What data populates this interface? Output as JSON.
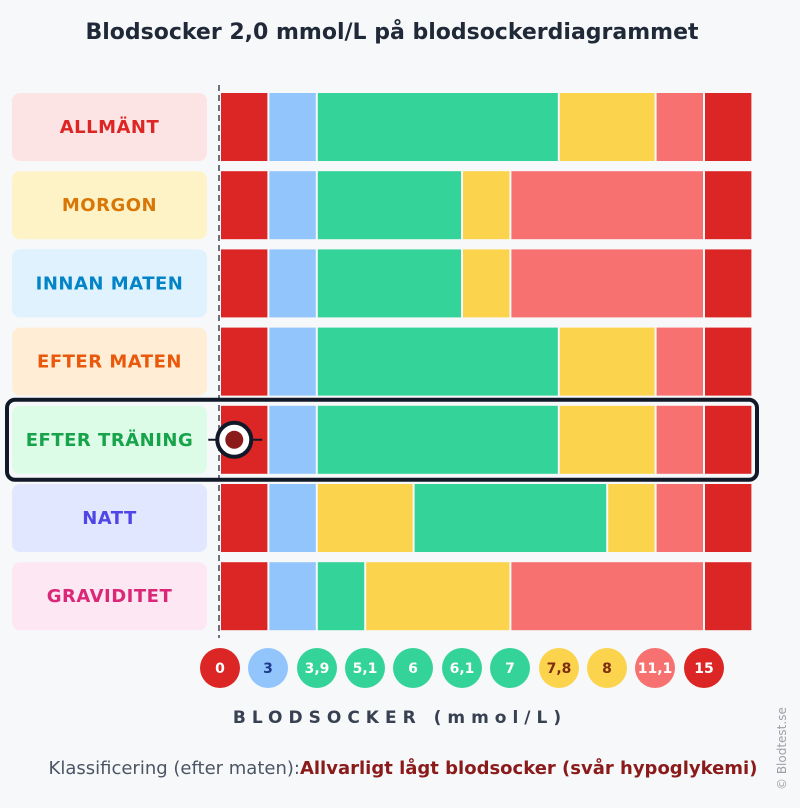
{
  "title": "Blodsocker 2,0 mmol/L på blodsockerdiagrammet",
  "xlabel": "BLODSOCKER (mmol/L)",
  "classification_label": "Klassificering (efter maten):",
  "classification_value": "Allvarligt lågt blodsocker (svår hypoglykemi)",
  "credit": "© Blodtest.se",
  "marker_row": "EFTER TRÄNING",
  "marker_value": 2.0,
  "colors": {
    "severe_low": "#dc2626",
    "low": "#93c5fd",
    "normal": "#34d399",
    "elevated": "#fcd34d",
    "high": "#f87171",
    "severe_high": "#dc2626"
  },
  "chart_data": {
    "type": "bar",
    "title": "Blodsocker 2,0 mmol/L på blodsockerdiagrammet",
    "xlabel": "BLODSOCKER (mmol/L)",
    "ticks": [
      "0",
      "3",
      "3,9",
      "5,1",
      "6",
      "6,1",
      "7",
      "7,8",
      "8",
      "11,1",
      "15"
    ],
    "tick_categories": [
      "severe_low",
      "low",
      "normal",
      "normal",
      "normal",
      "normal",
      "normal",
      "elevated",
      "elevated",
      "high",
      "severe_high"
    ],
    "rows": [
      {
        "label": "ALLMÄNT",
        "text_color": "#dc2626",
        "bg": "#fde4e4",
        "segments": [
          [
            "severe_low",
            1
          ],
          [
            "low",
            1
          ],
          [
            "normal",
            5
          ],
          [
            "elevated",
            2
          ],
          [
            "high",
            1
          ],
          [
            "severe_high",
            1
          ]
        ]
      },
      {
        "label": "MORGON",
        "text_color": "#d97706",
        "bg": "#fef3c7",
        "segments": [
          [
            "severe_low",
            1
          ],
          [
            "low",
            1
          ],
          [
            "normal",
            3
          ],
          [
            "elevated",
            1
          ],
          [
            "high",
            4
          ],
          [
            "severe_high",
            1
          ]
        ]
      },
      {
        "label": "INNAN MATEN",
        "text_color": "#0284c7",
        "bg": "#e0f2fe",
        "segments": [
          [
            "severe_low",
            1
          ],
          [
            "low",
            1
          ],
          [
            "normal",
            3
          ],
          [
            "elevated",
            1
          ],
          [
            "high",
            4
          ],
          [
            "severe_high",
            1
          ]
        ]
      },
      {
        "label": "EFTER MATEN",
        "text_color": "#ea580c",
        "bg": "#ffedd5",
        "segments": [
          [
            "severe_low",
            1
          ],
          [
            "low",
            1
          ],
          [
            "normal",
            5
          ],
          [
            "elevated",
            2
          ],
          [
            "high",
            1
          ],
          [
            "severe_high",
            1
          ]
        ]
      },
      {
        "label": "EFTER TRÄNING",
        "text_color": "#16a34a",
        "bg": "#dcfce7",
        "segments": [
          [
            "severe_low",
            1
          ],
          [
            "low",
            1
          ],
          [
            "normal",
            5
          ],
          [
            "elevated",
            2
          ],
          [
            "high",
            1
          ],
          [
            "severe_high",
            1
          ]
        ]
      },
      {
        "label": "NATT",
        "text_color": "#4f46e5",
        "bg": "#e0e7ff",
        "segments": [
          [
            "severe_low",
            1
          ],
          [
            "low",
            1
          ],
          [
            "elevated",
            2
          ],
          [
            "normal",
            4
          ],
          [
            "elevated",
            1
          ],
          [
            "high",
            1
          ],
          [
            "severe_high",
            1
          ]
        ]
      },
      {
        "label": "GRAVIDITET",
        "text_color": "#db2777",
        "bg": "#fce7f3",
        "segments": [
          [
            "severe_low",
            1
          ],
          [
            "low",
            1
          ],
          [
            "normal",
            1
          ],
          [
            "elevated",
            3
          ],
          [
            "high",
            4
          ],
          [
            "severe_high",
            1
          ]
        ]
      }
    ]
  }
}
